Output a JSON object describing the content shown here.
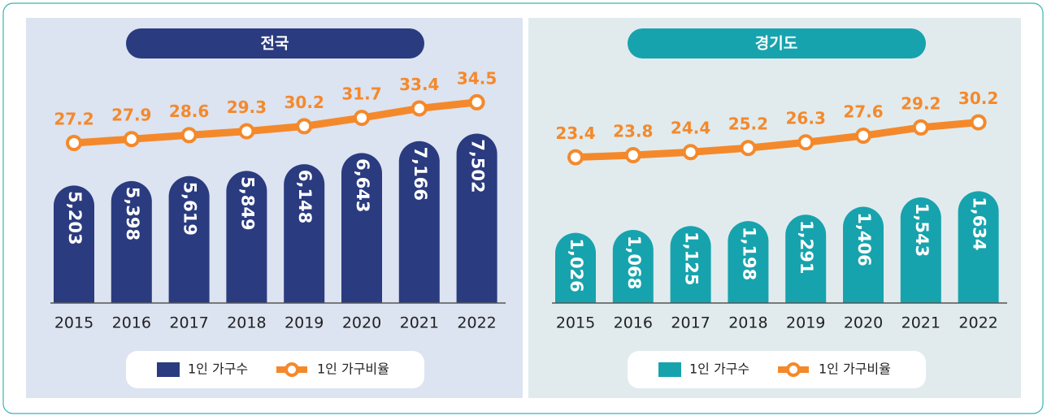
{
  "chart_data": [
    {
      "type": "combo",
      "title": "전국",
      "categories": [
        "2015",
        "2016",
        "2017",
        "2018",
        "2019",
        "2020",
        "2021",
        "2022"
      ],
      "ylim": [
        0,
        10000
      ],
      "y2lim": [
        -1.5,
        39
      ],
      "series": [
        {
          "name": "1인 가구수",
          "type": "bar",
          "color": "#2a3b7f",
          "values": [
            5203,
            5398,
            5619,
            5849,
            6148,
            6643,
            7166,
            7502
          ],
          "value_labels": [
            "5,203",
            "5,398",
            "5,619",
            "5,849",
            "6,148",
            "6,643",
            "7,166",
            "7,502"
          ]
        },
        {
          "name": "1인 가구비율",
          "type": "line",
          "axis": "y2",
          "color": "#f4892b",
          "values": [
            27.2,
            27.9,
            28.6,
            29.3,
            30.2,
            31.7,
            33.4,
            34.5
          ]
        }
      ]
    },
    {
      "type": "combo",
      "title": "경기도",
      "categories": [
        "2015",
        "2016",
        "2017",
        "2018",
        "2019",
        "2020",
        "2021",
        "2022"
      ],
      "ylim": [
        0,
        3300
      ],
      "y2lim": [
        -5,
        39
      ],
      "series": [
        {
          "name": "1인 가구수",
          "type": "bar",
          "color": "#17a3ad",
          "values": [
            1026,
            1068,
            1125,
            1198,
            1291,
            1406,
            1543,
            1634
          ],
          "value_labels": [
            "1,026",
            "1,068",
            "1,125",
            "1,198",
            "1,291",
            "1,406",
            "1,543",
            "1,634"
          ]
        },
        {
          "name": "1인 가구비율",
          "type": "line",
          "axis": "y2",
          "color": "#f4892b",
          "values": [
            23.4,
            23.8,
            24.4,
            25.2,
            26.3,
            27.6,
            29.2,
            30.2
          ]
        }
      ]
    }
  ]
}
